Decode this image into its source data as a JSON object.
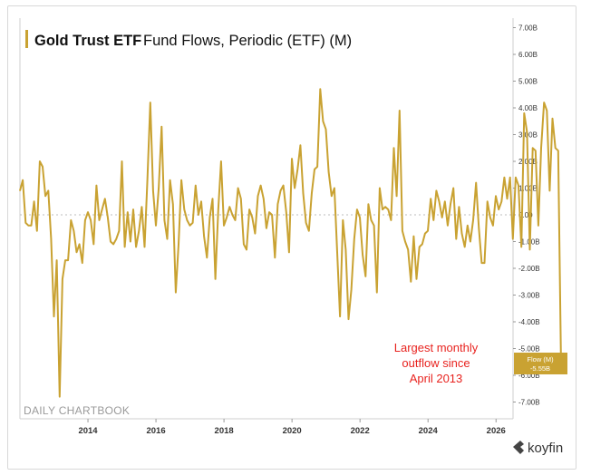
{
  "chart_data": {
    "type": "line",
    "title_bold": "Gold Trust ETF",
    "title_rest": "Fund Flows, Periodic (ETF) (M)",
    "x_ticks": [
      "2014",
      "2016",
      "2018",
      "2020",
      "2022",
      "2024",
      "2026"
    ],
    "y_ticks": [
      "7.00B",
      "6.00B",
      "5.00B",
      "4.00B",
      "3.00B",
      "2.00B",
      "1.00B",
      "0.00",
      "-1.00B",
      "-2.00B",
      "-3.00B",
      "-4.00B",
      "-5.00B",
      "-6.00B",
      "-7.00B"
    ],
    "ylim": [
      -7.5,
      7.3
    ],
    "xlim": [
      2012.0,
      2026.5
    ],
    "series": [
      {
        "name": "Flow (M)",
        "color": "#c9a232",
        "x_start": 2012.0,
        "x_step": 0.0833,
        "values": [
          0.9,
          1.3,
          -0.3,
          -0.4,
          -0.4,
          0.5,
          -0.6,
          2.0,
          1.8,
          0.7,
          0.9,
          -0.9,
          -3.8,
          -1.7,
          -6.8,
          -2.4,
          -1.7,
          -1.7,
          -0.2,
          -0.6,
          -1.4,
          -1.1,
          -1.8,
          -0.2,
          0.1,
          -0.2,
          -1.1,
          1.1,
          -0.2,
          0.2,
          0.6,
          -0.1,
          -1.0,
          -1.1,
          -0.9,
          -0.6,
          2.0,
          -1.2,
          0.1,
          -1.0,
          0.2,
          -1.2,
          -0.6,
          0.3,
          -1.2,
          1.3,
          4.2,
          0.9,
          -0.4,
          1.0,
          3.3,
          -0.2,
          -0.9,
          1.3,
          0.4,
          -2.9,
          -1.1,
          1.3,
          0.2,
          -0.2,
          -0.4,
          -0.3,
          1.1,
          0.0,
          0.5,
          -0.8,
          -1.6,
          -0.1,
          0.6,
          -2.4,
          0.2,
          2.0,
          -0.4,
          -0.1,
          0.3,
          0.0,
          -0.2,
          1.0,
          0.6,
          -1.1,
          -1.3,
          0.2,
          -0.1,
          -0.7,
          0.7,
          1.1,
          0.6,
          -0.5,
          0.1,
          0.0,
          -1.6,
          0.4,
          0.9,
          1.1,
          0.1,
          -1.4,
          2.1,
          1.0,
          1.7,
          2.6,
          0.8,
          -0.3,
          -0.6,
          0.8,
          1.7,
          1.8,
          4.7,
          3.5,
          3.2,
          1.6,
          0.7,
          1.0,
          -1.4,
          -3.8,
          -0.2,
          -1.3,
          -3.9,
          -2.8,
          -0.9,
          0.2,
          -0.1,
          -1.5,
          -2.3,
          0.4,
          -0.2,
          -0.4,
          -2.9,
          1.0,
          0.2,
          0.3,
          0.2,
          -0.2,
          2.5,
          0.7,
          3.9,
          -0.6,
          -1.0,
          -1.3,
          -2.5,
          -0.8,
          -2.4,
          -1.2,
          -1.1,
          -0.7,
          -0.6,
          0.6,
          -0.2,
          0.9,
          0.5,
          -0.1,
          0.5,
          -0.4,
          0.4,
          1.0,
          -0.9,
          0.3,
          -0.7,
          -1.2,
          -0.4,
          -1.0,
          -0.2,
          1.2,
          -0.5,
          -1.8,
          -1.8,
          0.5,
          -0.1,
          -0.4,
          0.7,
          0.2,
          0.5,
          1.4,
          0.6,
          1.4,
          -0.9,
          1.4,
          1.1,
          -1.2,
          3.8,
          3.1,
          -1.3,
          2.5,
          2.4,
          -0.4,
          2.5,
          4.2,
          3.9,
          0.9,
          3.6,
          2.5,
          2.4,
          -5.5
        ]
      }
    ],
    "zero_line": true,
    "grid": false,
    "legend_position": "right-axis-label",
    "last_value_badge": {
      "label": "Flow (M)",
      "value": "-5.55B"
    },
    "annotation": "Largest monthly outflow since April 2013",
    "annotation_lines": [
      "Largest monthly",
      "outflow since",
      "April 2013"
    ],
    "annotation_color": "#e8231f",
    "watermark": "DAILY CHARTBOOK",
    "brand": "koyfin"
  }
}
